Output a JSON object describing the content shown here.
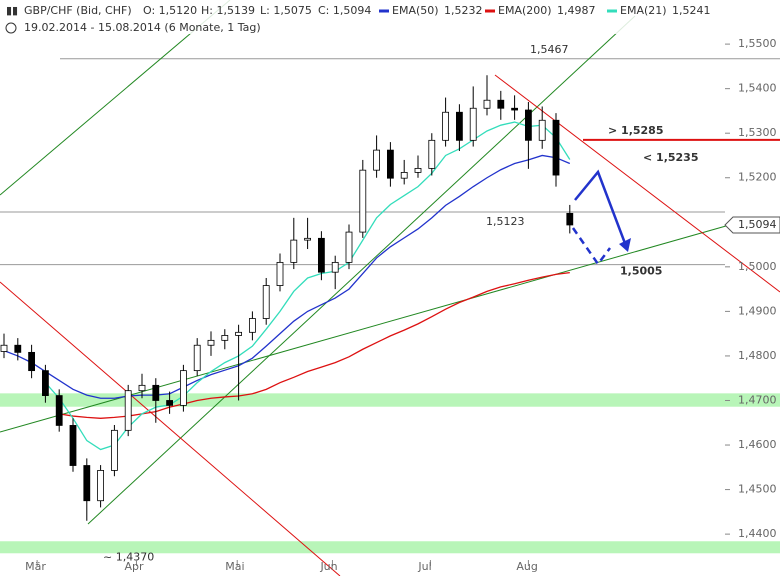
{
  "header": {
    "instrument": "GBP/CHF (Bid, CHF)",
    "ohlc": [
      "O: 1,5120",
      "H: 1,5139",
      "L: 1,5075",
      "C: 1,5094"
    ],
    "range": "19.02.2014 - 15.08.2014 (6 Monate, 1 Tag)"
  },
  "chart_data": {
    "type": "candlestick",
    "ylim": [
      1.4306,
      1.5599
    ],
    "yticks": [
      {
        "value": 1.44,
        "label": "1,4400"
      },
      {
        "value": 1.45,
        "label": "1,4500"
      },
      {
        "value": 1.46,
        "label": "1,4600"
      },
      {
        "value": 1.47,
        "label": "1,4700"
      },
      {
        "value": 1.48,
        "label": "1,4800"
      },
      {
        "value": 1.49,
        "label": "1,4900"
      },
      {
        "value": 1.5,
        "label": "1,5000"
      },
      {
        "value": 1.52,
        "label": "1,5200"
      },
      {
        "value": 1.53,
        "label": "1,5300"
      },
      {
        "value": 1.54,
        "label": "1,5400"
      },
      {
        "value": 1.55,
        "label": "1,5500"
      }
    ],
    "xticks": [
      {
        "value": 2.4,
        "label": "Mär"
      },
      {
        "value": 9.6,
        "label": "Apr"
      },
      {
        "value": 16.9,
        "label": "Mai"
      },
      {
        "value": 23.8,
        "label": "Jun"
      },
      {
        "value": 30.9,
        "label": "Jul"
      },
      {
        "value": 38,
        "label": "Aug"
      }
    ],
    "candles": [
      [
        1.481,
        1.485,
        1.4795,
        1.4824
      ],
      [
        1.4824,
        1.484,
        1.479,
        1.4808
      ],
      [
        1.4808,
        1.4825,
        1.475,
        1.4767
      ],
      [
        1.4767,
        1.478,
        1.4695,
        1.4711
      ],
      [
        1.4711,
        1.4725,
        1.463,
        1.4644
      ],
      [
        1.4644,
        1.466,
        1.454,
        1.4554
      ],
      [
        1.4554,
        1.457,
        1.443,
        1.4475
      ],
      [
        1.4475,
        1.4555,
        1.446,
        1.4543
      ],
      [
        1.4543,
        1.4645,
        1.453,
        1.4633
      ],
      [
        1.4633,
        1.4735,
        1.462,
        1.4722
      ],
      [
        1.4722,
        1.476,
        1.4705,
        1.4734
      ],
      [
        1.4734,
        1.475,
        1.465,
        1.47
      ],
      [
        1.47,
        1.472,
        1.467,
        1.4689
      ],
      [
        1.4689,
        1.478,
        1.4675,
        1.4767
      ],
      [
        1.4767,
        1.484,
        1.4755,
        1.4824
      ],
      [
        1.4824,
        1.4855,
        1.48,
        1.4835
      ],
      [
        1.4835,
        1.486,
        1.4815,
        1.4846
      ],
      [
        1.4846,
        1.487,
        1.47,
        1.4853
      ],
      [
        1.4853,
        1.49,
        1.4835,
        1.4884
      ],
      [
        1.4884,
        1.4975,
        1.487,
        1.4958
      ],
      [
        1.4958,
        1.503,
        1.4945,
        1.501
      ],
      [
        1.501,
        1.511,
        1.4995,
        1.506
      ],
      [
        1.506,
        1.511,
        1.504,
        1.5064
      ],
      [
        1.5064,
        1.508,
        1.497,
        1.4988
      ],
      [
        1.4988,
        1.5025,
        1.495,
        1.501
      ],
      [
        1.501,
        1.5095,
        1.4995,
        1.5078
      ],
      [
        1.5078,
        1.524,
        1.5065,
        1.5217
      ],
      [
        1.5217,
        1.5295,
        1.52,
        1.5262
      ],
      [
        1.5262,
        1.528,
        1.518,
        1.5199
      ],
      [
        1.5199,
        1.524,
        1.5185,
        1.5212
      ],
      [
        1.5212,
        1.525,
        1.52,
        1.5221
      ],
      [
        1.5221,
        1.53,
        1.5205,
        1.5284
      ],
      [
        1.5284,
        1.538,
        1.527,
        1.5347
      ],
      [
        1.5347,
        1.5365,
        1.526,
        1.5284
      ],
      [
        1.5284,
        1.5405,
        1.527,
        1.5356
      ],
      [
        1.5356,
        1.543,
        1.534,
        1.5374
      ],
      [
        1.5374,
        1.5395,
        1.533,
        1.5356
      ],
      [
        1.5356,
        1.5385,
        1.533,
        1.5352
      ],
      [
        1.5352,
        1.537,
        1.522,
        1.5284
      ],
      [
        1.5284,
        1.536,
        1.5265,
        1.5329
      ],
      [
        1.5329,
        1.5345,
        1.518,
        1.5206
      ],
      [
        1.512,
        1.5139,
        1.5075,
        1.5094
      ]
    ],
    "series": [
      {
        "name": "EMA(50)",
        "color": "#2233cc",
        "last_label": "1,5232",
        "values": [
          1.4812,
          1.48,
          1.4785,
          1.4765,
          1.4745,
          1.4725,
          1.4712,
          1.4705,
          1.4705,
          1.471,
          1.4712,
          1.4712,
          1.4715,
          1.473,
          1.4745,
          1.4758,
          1.4768,
          1.4778,
          1.4795,
          1.4822,
          1.485,
          1.4878,
          1.49,
          1.4915,
          1.493,
          1.495,
          1.4985,
          1.502,
          1.5045,
          1.5065,
          1.5085,
          1.511,
          1.5138,
          1.5158,
          1.518,
          1.52,
          1.5218,
          1.5232,
          1.524,
          1.525,
          1.5245,
          1.5232
        ]
      },
      {
        "name": "EMA(200)",
        "color": "#dd1111",
        "last_label": "1,4987",
        "values": [
          null,
          null,
          null,
          null,
          1.467,
          1.4665,
          1.4662,
          1.466,
          1.4662,
          1.4665,
          1.467,
          1.4675,
          1.4685,
          1.4692,
          1.47,
          1.4705,
          1.4708,
          1.471,
          1.4715,
          1.4725,
          1.474,
          1.4752,
          1.4765,
          1.4775,
          1.4785,
          1.4798,
          1.4815,
          1.483,
          1.4845,
          1.4858,
          1.4872,
          1.4888,
          1.4905,
          1.492,
          1.4932,
          1.4945,
          1.4955,
          1.4962,
          1.497,
          1.4977,
          1.4983,
          1.4987
        ]
      },
      {
        "name": "EMA(21)",
        "color": "#33ddbb",
        "last_label": "1,5241",
        "values": [
          null,
          null,
          null,
          1.474,
          1.4705,
          1.466,
          1.461,
          1.459,
          1.46,
          1.464,
          1.467,
          1.4685,
          1.469,
          1.471,
          1.474,
          1.4765,
          1.4785,
          1.48,
          1.4822,
          1.486,
          1.49,
          1.4945,
          1.4975,
          1.4985,
          1.499,
          1.501,
          1.506,
          1.511,
          1.514,
          1.516,
          1.518,
          1.521,
          1.525,
          1.5265,
          1.5285,
          1.5305,
          1.5318,
          1.5325,
          1.5315,
          1.5318,
          1.529,
          1.5241
        ]
      }
    ],
    "zones": [
      [
        1.4686,
        1.4716
      ],
      [
        1.4357,
        1.4384
      ]
    ],
    "last_price": {
      "value": 1.5094,
      "label": "1,5094"
    },
    "levels": [
      {
        "value": 1.5467,
        "label": "1,5467",
        "color": "#999999"
      },
      {
        "value": 1.5123,
        "label": "1,5123",
        "color": "#999999"
      },
      {
        "value": 1.5005,
        "label": "1,5005",
        "color": "#999999"
      },
      {
        "value": 1.5285,
        "label": "> 1,5285",
        "color": "#dd1111"
      },
      {
        "value": 1.5235,
        "label": "< 1,5235",
        "color": "#2233cc"
      },
      {
        "value": 1.437,
        "label": "~ 1,4370",
        "color": "#999999"
      }
    ]
  }
}
